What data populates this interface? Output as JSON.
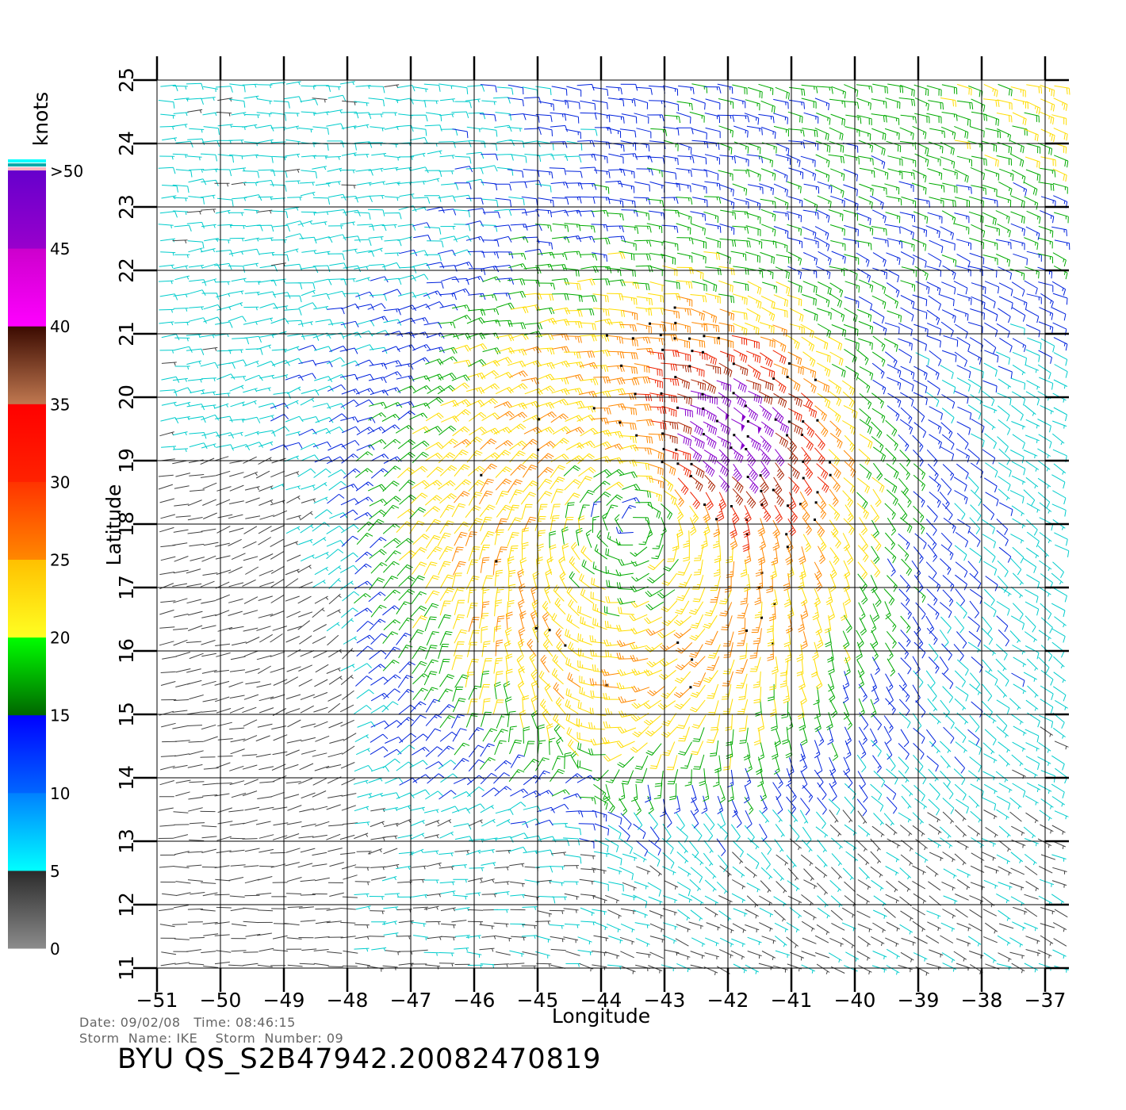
{
  "map": {
    "xlabel": "Longitude",
    "ylabel": "Latitude",
    "lon_range": [
      -51,
      -37
    ],
    "lat_range": [
      11,
      25
    ],
    "lon_ticks": [
      "−51",
      "−50",
      "−49",
      "−48",
      "−47",
      "−46",
      "−45",
      "−44",
      "−43",
      "−42",
      "−41",
      "−40",
      "−39",
      "−38",
      "−37"
    ],
    "lat_ticks": [
      "11",
      "12",
      "13",
      "14",
      "15",
      "16",
      "17",
      "18",
      "19",
      "20",
      "21",
      "22",
      "23",
      "24",
      "25"
    ],
    "grid": true,
    "storm_center": {
      "lon": -43.5,
      "lat": 18.0
    },
    "max_wind_center": {
      "lon": -42.0,
      "lat": 19.5
    }
  },
  "colorbar": {
    "unit_label": "knots",
    "labels": [
      "0",
      "5",
      "10",
      "15",
      "20",
      "25",
      "30",
      "35",
      "40",
      "45",
      ">50"
    ],
    "bands": [
      {
        "from": 0,
        "to": 5,
        "colors": [
          "#8c8c8c",
          "#2a2a2a"
        ]
      },
      {
        "from": 5,
        "to": 10,
        "colors": [
          "#00ffff",
          "#0080ff"
        ]
      },
      {
        "from": 10,
        "to": 15,
        "colors": [
          "#0066ff",
          "#0000ff"
        ]
      },
      {
        "from": 15,
        "to": 20,
        "colors": [
          "#006600",
          "#00ff00"
        ]
      },
      {
        "from": 20,
        "to": 25,
        "colors": [
          "#ffff22",
          "#ffc000"
        ]
      },
      {
        "from": 25,
        "to": 30,
        "colors": [
          "#ff8800",
          "#ff3300"
        ]
      },
      {
        "from": 30,
        "to": 35,
        "colors": [
          "#ff2200",
          "#ff0000"
        ]
      },
      {
        "from": 35,
        "to": 40,
        "colors": [
          "#c07850",
          "#3a0a00"
        ]
      },
      {
        "from": 40,
        "to": 45,
        "colors": [
          "#ff00ff",
          "#cc00cc"
        ]
      },
      {
        "from": 45,
        "to": 50,
        "colors": [
          "#9900cc",
          "#6600cc"
        ]
      }
    ],
    "top_strips": [
      "#ffb6c1",
      "#00aaaa",
      "#00ffff"
    ]
  },
  "speed_colors": {
    "lt5": "#404040",
    "lt10": "#00cccc",
    "lt15": "#0022dd",
    "lt20": "#00aa00",
    "lt25": "#ffdd00",
    "lt30": "#ff8800",
    "lt35": "#ee2200",
    "lt40": "#aa2200",
    "ge40": "#8800cc"
  },
  "info": {
    "date_line": "Date: 09/02/08   Time: 08:46:15",
    "storm_line": "Storm  Name: IKE    Storm  Number: 09",
    "product_id": "BYU  QS_S2B47942.20082470819"
  }
}
